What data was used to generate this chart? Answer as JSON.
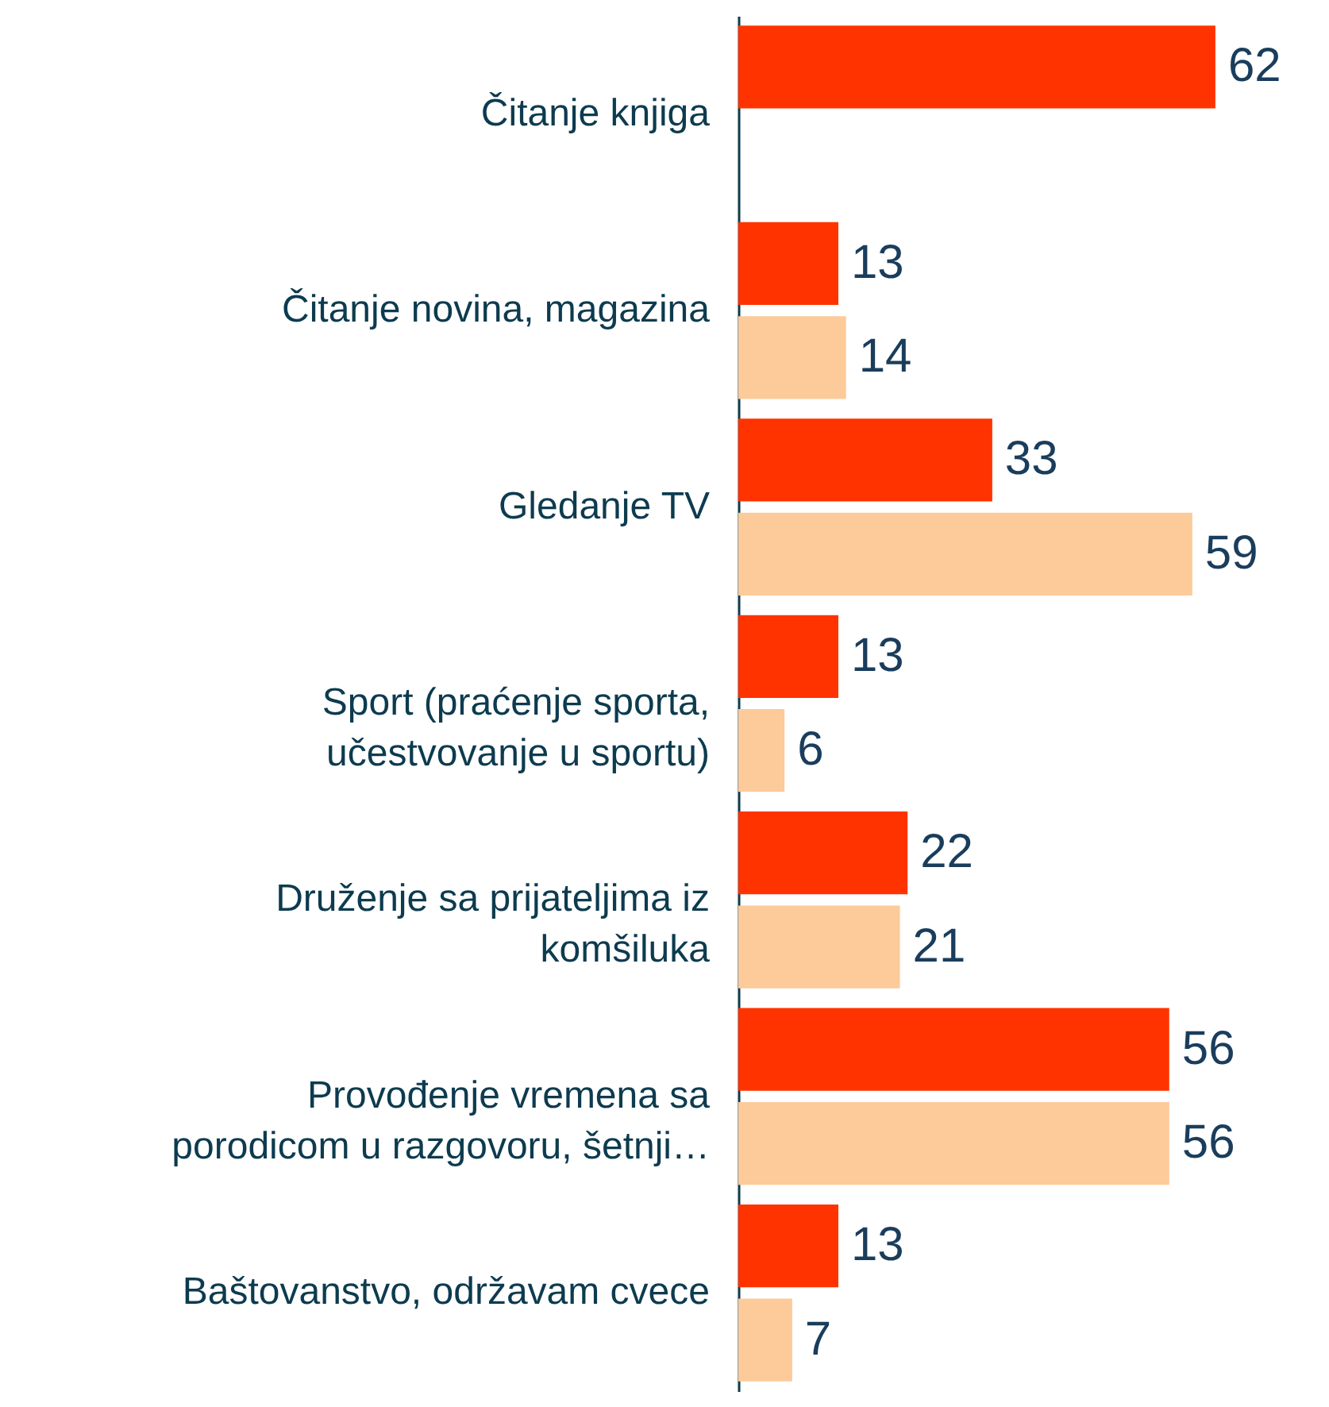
{
  "chart_data": {
    "type": "bar",
    "orientation": "horizontal",
    "categories": [
      "Čitanje knjiga",
      "Čitanje novina, magazina",
      "Gledanje TV",
      "Sport (praćenje sporta, učestvovanje u sportu)",
      "Druženje sa prijateljima iz komšiluka",
      "Provođenje vremena sa porodicom u razgovoru, šetnji…",
      "Baštovanstvo, održavam cvece"
    ],
    "series": [
      {
        "color": "#ff3300",
        "values": [
          62,
          13,
          33,
          13,
          22,
          56,
          13
        ]
      },
      {
        "color": "#fdca9a",
        "values": [
          null,
          14,
          59,
          6,
          21,
          56,
          7
        ]
      }
    ],
    "data_labels": true,
    "tick_labels": "y"
  }
}
